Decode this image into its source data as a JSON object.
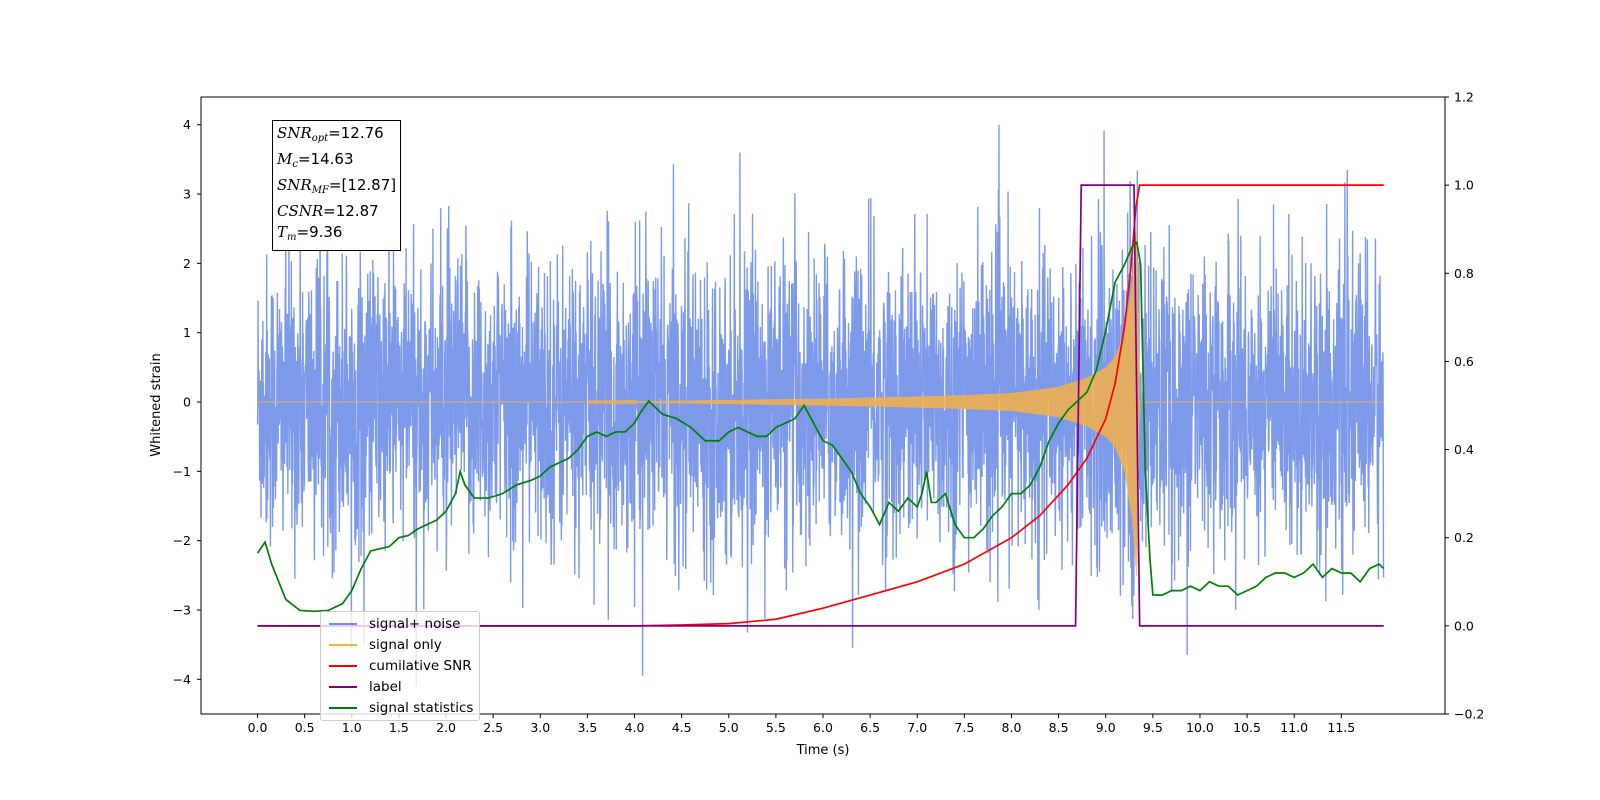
{
  "chart_data": {
    "type": "line",
    "xlabel": "Time (s)",
    "ylabel": "Whitened strain",
    "xlim": [
      -0.6,
      12.6
    ],
    "ylim": [
      -4.5,
      4.4
    ],
    "ylim_right": [
      -0.2,
      1.2
    ],
    "x_ticks": [
      "0.0",
      "0.5",
      "1.0",
      "1.5",
      "2.0",
      "2.5",
      "3.0",
      "3.5",
      "4.0",
      "4.5",
      "5.0",
      "5.5",
      "6.0",
      "6.5",
      "7.0",
      "7.5",
      "8.0",
      "8.5",
      "9.0",
      "9.5",
      "10.0",
      "10.5",
      "11.0",
      "11.5"
    ],
    "y_ticks_left": [
      "4",
      "3",
      "2",
      "1",
      "0",
      "−1",
      "−2",
      "−3",
      "−4"
    ],
    "y_ticks_right": [
      "1.2",
      "1.0",
      "0.8",
      "0.6",
      "0.4",
      "0.2",
      "0.0",
      "−0.2"
    ],
    "grid": false,
    "legend_position": "lower-left",
    "annotation": {
      "snr_opt": "12.76",
      "mc": "14.63",
      "snr_mf": "[12.87]",
      "csnr": "12.87",
      "tm": "9.36"
    },
    "series": [
      {
        "name": "signal+ noise",
        "color": "#6f8ee8",
        "axis": "left",
        "description": "noisy whitened strain, roughly +/-3.5 with peaks to ~4.0"
      },
      {
        "name": "signal only",
        "color": "#f5b24a",
        "axis": "left",
        "envelope": [
          [
            0,
            0
          ],
          [
            4,
            0.01
          ],
          [
            5,
            0.03
          ],
          [
            6,
            0.05
          ],
          [
            7,
            0.08
          ],
          [
            7.5,
            0.1
          ],
          [
            8,
            0.13
          ],
          [
            8.5,
            0.22
          ],
          [
            8.8,
            0.35
          ],
          [
            9.0,
            0.5
          ],
          [
            9.1,
            0.65
          ],
          [
            9.2,
            1.0
          ],
          [
            9.28,
            1.7
          ],
          [
            9.33,
            2.6
          ],
          [
            9.36,
            0
          ],
          [
            12.0,
            0
          ]
        ]
      },
      {
        "name": "cumilative SNR",
        "color": "#ff0000",
        "axis": "right",
        "points": [
          [
            0,
            0
          ],
          [
            4,
            0.0
          ],
          [
            4.5,
            0.002
          ],
          [
            5,
            0.005
          ],
          [
            5.5,
            0.015
          ],
          [
            6,
            0.04
          ],
          [
            6.5,
            0.07
          ],
          [
            7,
            0.1
          ],
          [
            7.5,
            0.14
          ],
          [
            8,
            0.2
          ],
          [
            8.3,
            0.25
          ],
          [
            8.6,
            0.32
          ],
          [
            8.8,
            0.38
          ],
          [
            9.0,
            0.47
          ],
          [
            9.1,
            0.55
          ],
          [
            9.2,
            0.68
          ],
          [
            9.27,
            0.82
          ],
          [
            9.32,
            0.95
          ],
          [
            9.36,
            1.0
          ],
          [
            11.95,
            1.0
          ]
        ]
      },
      {
        "name": "label",
        "color": "#800080",
        "axis": "right",
        "points": [
          [
            0,
            0
          ],
          [
            8.68,
            0
          ],
          [
            8.74,
            1.0
          ],
          [
            9.3,
            1.0
          ],
          [
            9.36,
            0
          ],
          [
            11.95,
            0
          ]
        ]
      },
      {
        "name": "signal statistics",
        "color": "#008000",
        "axis": "right",
        "points": [
          [
            0,
            0.165
          ],
          [
            0.08,
            0.19
          ],
          [
            0.15,
            0.14
          ],
          [
            0.3,
            0.06
          ],
          [
            0.45,
            0.035
          ],
          [
            0.6,
            0.033
          ],
          [
            0.75,
            0.035
          ],
          [
            0.9,
            0.05
          ],
          [
            1.0,
            0.08
          ],
          [
            1.1,
            0.13
          ],
          [
            1.2,
            0.17
          ],
          [
            1.3,
            0.175
          ],
          [
            1.4,
            0.18
          ],
          [
            1.5,
            0.2
          ],
          [
            1.6,
            0.205
          ],
          [
            1.7,
            0.22
          ],
          [
            1.8,
            0.23
          ],
          [
            1.9,
            0.24
          ],
          [
            2.0,
            0.26
          ],
          [
            2.1,
            0.3
          ],
          [
            2.15,
            0.35
          ],
          [
            2.2,
            0.32
          ],
          [
            2.3,
            0.29
          ],
          [
            2.45,
            0.29
          ],
          [
            2.6,
            0.3
          ],
          [
            2.75,
            0.32
          ],
          [
            2.9,
            0.33
          ],
          [
            3.0,
            0.34
          ],
          [
            3.1,
            0.36
          ],
          [
            3.2,
            0.37
          ],
          [
            3.3,
            0.38
          ],
          [
            3.4,
            0.4
          ],
          [
            3.5,
            0.43
          ],
          [
            3.6,
            0.44
          ],
          [
            3.7,
            0.43
          ],
          [
            3.8,
            0.44
          ],
          [
            3.9,
            0.44
          ],
          [
            4.0,
            0.46
          ],
          [
            4.05,
            0.48
          ],
          [
            4.15,
            0.51
          ],
          [
            4.3,
            0.48
          ],
          [
            4.45,
            0.47
          ],
          [
            4.6,
            0.45
          ],
          [
            4.75,
            0.42
          ],
          [
            4.9,
            0.42
          ],
          [
            5.0,
            0.44
          ],
          [
            5.1,
            0.45
          ],
          [
            5.2,
            0.44
          ],
          [
            5.3,
            0.43
          ],
          [
            5.4,
            0.43
          ],
          [
            5.5,
            0.45
          ],
          [
            5.6,
            0.46
          ],
          [
            5.7,
            0.47
          ],
          [
            5.8,
            0.5
          ],
          [
            5.9,
            0.46
          ],
          [
            6.0,
            0.42
          ],
          [
            6.1,
            0.41
          ],
          [
            6.2,
            0.38
          ],
          [
            6.3,
            0.35
          ],
          [
            6.4,
            0.3
          ],
          [
            6.5,
            0.27
          ],
          [
            6.6,
            0.23
          ],
          [
            6.7,
            0.28
          ],
          [
            6.8,
            0.26
          ],
          [
            6.9,
            0.29
          ],
          [
            7.0,
            0.27
          ],
          [
            7.05,
            0.3
          ],
          [
            7.1,
            0.35
          ],
          [
            7.15,
            0.28
          ],
          [
            7.2,
            0.28
          ],
          [
            7.3,
            0.3
          ],
          [
            7.4,
            0.23
          ],
          [
            7.5,
            0.2
          ],
          [
            7.6,
            0.2
          ],
          [
            7.7,
            0.22
          ],
          [
            7.8,
            0.25
          ],
          [
            7.9,
            0.27
          ],
          [
            8.0,
            0.3
          ],
          [
            8.1,
            0.3
          ],
          [
            8.2,
            0.32
          ],
          [
            8.3,
            0.36
          ],
          [
            8.4,
            0.42
          ],
          [
            8.5,
            0.46
          ],
          [
            8.6,
            0.49
          ],
          [
            8.7,
            0.51
          ],
          [
            8.8,
            0.53
          ],
          [
            8.9,
            0.58
          ],
          [
            9.0,
            0.67
          ],
          [
            9.1,
            0.78
          ],
          [
            9.2,
            0.82
          ],
          [
            9.28,
            0.86
          ],
          [
            9.33,
            0.87
          ],
          [
            9.37,
            0.82
          ],
          [
            9.42,
            0.35
          ],
          [
            9.47,
            0.15
          ],
          [
            9.5,
            0.07
          ],
          [
            9.6,
            0.07
          ],
          [
            9.7,
            0.08
          ],
          [
            9.8,
            0.08
          ],
          [
            9.9,
            0.09
          ],
          [
            10.0,
            0.08
          ],
          [
            10.1,
            0.1
          ],
          [
            10.2,
            0.09
          ],
          [
            10.3,
            0.09
          ],
          [
            10.4,
            0.07
          ],
          [
            10.5,
            0.08
          ],
          [
            10.6,
            0.09
          ],
          [
            10.7,
            0.11
          ],
          [
            10.8,
            0.12
          ],
          [
            10.9,
            0.12
          ],
          [
            11.0,
            0.11
          ],
          [
            11.1,
            0.12
          ],
          [
            11.2,
            0.14
          ],
          [
            11.3,
            0.11
          ],
          [
            11.4,
            0.13
          ],
          [
            11.5,
            0.12
          ],
          [
            11.6,
            0.12
          ],
          [
            11.7,
            0.1
          ],
          [
            11.8,
            0.13
          ],
          [
            11.9,
            0.14
          ],
          [
            11.95,
            0.13
          ]
        ]
      }
    ]
  }
}
